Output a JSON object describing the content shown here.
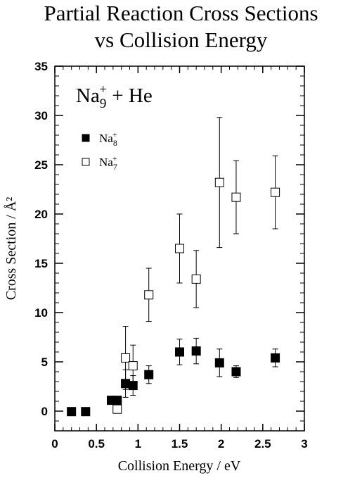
{
  "chart_data": {
    "type": "scatter",
    "title": [
      "Partial Reaction Cross Sections",
      "vs Collision Energy"
    ],
    "annotation": {
      "base": "Na",
      "sub": "9",
      "sup": "+",
      "rest": " + He"
    },
    "xlabel": "Collision Energy / eV",
    "ylabel": "Cross Section / Å²",
    "xlim": [
      0,
      3
    ],
    "ylim": [
      -2,
      35
    ],
    "xticks": [
      {
        "v": 0,
        "label": "0"
      },
      {
        "v": 0.5,
        "label": "0.5"
      },
      {
        "v": 1,
        "label": "1"
      },
      {
        "v": 1.5,
        "label": "1.5"
      },
      {
        "v": 2,
        "label": "2"
      },
      {
        "v": 2.5,
        "label": "2.5"
      },
      {
        "v": 3,
        "label": "3"
      }
    ],
    "yticks": [
      {
        "v": 0,
        "label": "0"
      },
      {
        "v": 5,
        "label": "5"
      },
      {
        "v": 10,
        "label": "10"
      },
      {
        "v": 15,
        "label": "15"
      },
      {
        "v": 20,
        "label": "20"
      },
      {
        "v": 25,
        "label": "25"
      },
      {
        "v": 30,
        "label": "30"
      },
      {
        "v": 35,
        "label": "35"
      }
    ],
    "legend_position": "upper-left",
    "series": [
      {
        "name": "Na8+",
        "label_base": "Na",
        "label_sub": "8",
        "label_sup": "+",
        "marker": "filled-square",
        "points": [
          {
            "x": 0.2,
            "y": -0.05
          },
          {
            "x": 0.37,
            "y": -0.05
          },
          {
            "x": 0.68,
            "y": 1.1
          },
          {
            "x": 0.75,
            "y": 1.1
          },
          {
            "x": 0.85,
            "y": 2.8,
            "err": 1.4
          },
          {
            "x": 0.94,
            "y": 2.6,
            "err": 1.0
          },
          {
            "x": 1.13,
            "y": 3.7,
            "err": 0.9
          },
          {
            "x": 1.5,
            "y": 6.0,
            "err": 1.3
          },
          {
            "x": 1.7,
            "y": 6.1,
            "err": 1.3
          },
          {
            "x": 1.98,
            "y": 4.9,
            "err": 1.4
          },
          {
            "x": 2.18,
            "y": 4.0,
            "err": 0.6
          },
          {
            "x": 2.65,
            "y": 5.4,
            "err": 0.9
          }
        ]
      },
      {
        "name": "Na7+",
        "label_base": "Na",
        "label_sub": "7",
        "label_sup": "+",
        "marker": "open-square",
        "points": [
          {
            "x": 0.75,
            "y": 0.2
          },
          {
            "x": 0.85,
            "y": 5.4,
            "err": 3.2
          },
          {
            "x": 0.94,
            "y": 4.6,
            "err": 2.1
          },
          {
            "x": 1.13,
            "y": 11.8,
            "err": 2.7
          },
          {
            "x": 1.5,
            "y": 16.5,
            "err": 3.5
          },
          {
            "x": 1.7,
            "y": 13.4,
            "err": 2.9
          },
          {
            "x": 1.98,
            "y": 23.2,
            "err": 6.6
          },
          {
            "x": 2.18,
            "y": 21.7,
            "err": 3.7
          },
          {
            "x": 2.65,
            "y": 22.2,
            "err": 3.7
          }
        ]
      }
    ]
  }
}
